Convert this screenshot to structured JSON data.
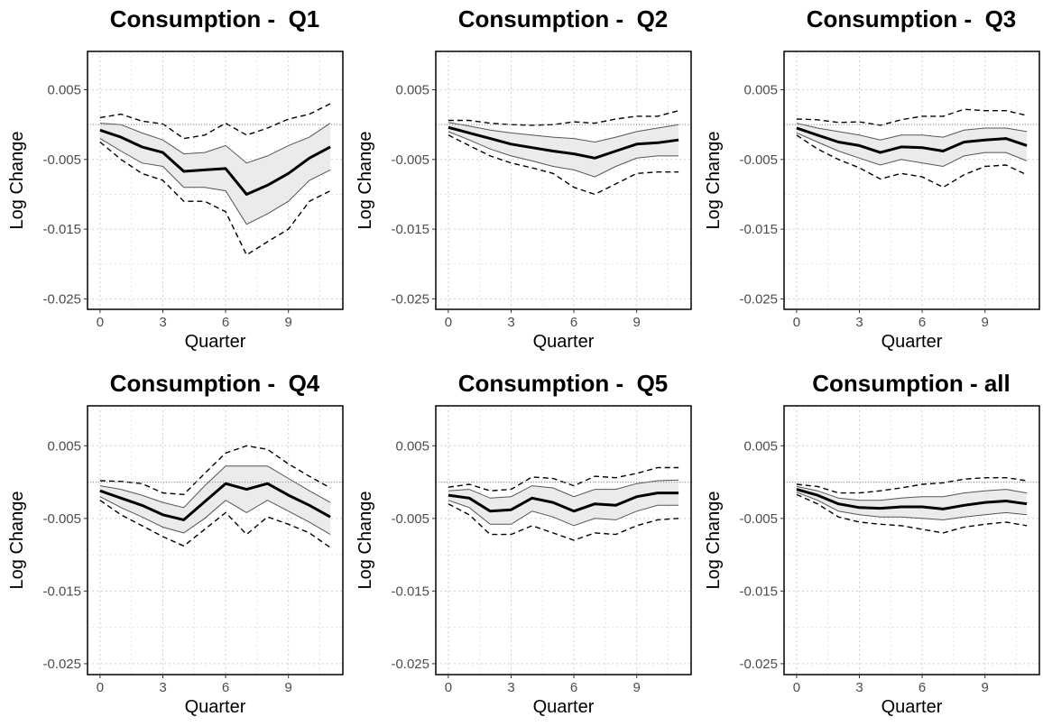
{
  "chart_data": [
    {
      "type": "line",
      "title": "Consumption -  Q1",
      "xlabel": "Quarter",
      "ylabel": "Log Change",
      "x": [
        0,
        1,
        2,
        3,
        4,
        5,
        6,
        7,
        8,
        9,
        10,
        11
      ],
      "xticks": [
        0,
        3,
        6,
        9
      ],
      "xtick_labels": [
        "0",
        "3",
        "6",
        "9"
      ],
      "yticks": [
        0.005,
        -0.005,
        -0.015,
        -0.025
      ],
      "ytick_labels": [
        "0.005",
        "-0.005",
        "-0.015",
        "-0.025"
      ],
      "xlim": [
        -0.6,
        11.6
      ],
      "ylim": [
        -0.0265,
        0.0105
      ],
      "grid": true,
      "reference_line": 0,
      "series": [
        {
          "role": "estimate",
          "values": [
            -0.0008,
            -0.0018,
            -0.0032,
            -0.004,
            -0.0067,
            -0.0065,
            -0.0063,
            -0.01,
            -0.0087,
            -0.007,
            -0.0048,
            -0.0032
          ]
        },
        {
          "role": "band_upper",
          "values": [
            0.0002,
            0.0,
            -0.0012,
            -0.0022,
            -0.0042,
            -0.004,
            -0.003,
            -0.0055,
            -0.0045,
            -0.003,
            -0.0018,
            0.0002
          ]
        },
        {
          "role": "band_lower",
          "values": [
            -0.002,
            -0.0038,
            -0.0055,
            -0.006,
            -0.009,
            -0.009,
            -0.0095,
            -0.0143,
            -0.0128,
            -0.011,
            -0.008,
            -0.0065
          ]
        },
        {
          "role": "ci_upper",
          "values": [
            0.001,
            0.0015,
            0.0005,
            0.0001,
            -0.002,
            -0.0015,
            0.0002,
            -0.0015,
            -0.0005,
            0.0008,
            0.0015,
            0.003
          ]
        },
        {
          "role": "ci_lower",
          "values": [
            -0.0025,
            -0.005,
            -0.007,
            -0.008,
            -0.011,
            -0.011,
            -0.0125,
            -0.0187,
            -0.0168,
            -0.015,
            -0.011,
            -0.0095
          ]
        }
      ]
    },
    {
      "type": "line",
      "title": "Consumption -  Q2",
      "xlabel": "Quarter",
      "ylabel": "Log Change",
      "x": [
        0,
        1,
        2,
        3,
        4,
        5,
        6,
        7,
        8,
        9,
        10,
        11
      ],
      "xticks": [
        0,
        3,
        6,
        9
      ],
      "xtick_labels": [
        "0",
        "3",
        "6",
        "9"
      ],
      "yticks": [
        0.005,
        -0.005,
        -0.015,
        -0.025
      ],
      "ytick_labels": [
        "0.005",
        "-0.005",
        "-0.015",
        "-0.025"
      ],
      "xlim": [
        -0.6,
        11.6
      ],
      "ylim": [
        -0.0265,
        0.0105
      ],
      "grid": true,
      "reference_line": 0,
      "series": [
        {
          "role": "estimate",
          "values": [
            -0.0004,
            -0.0012,
            -0.002,
            -0.0028,
            -0.0033,
            -0.0038,
            -0.0042,
            -0.0048,
            -0.0038,
            -0.0028,
            -0.0026,
            -0.0022
          ]
        },
        {
          "role": "band_upper",
          "values": [
            0.0003,
            -0.0002,
            -0.0008,
            -0.0012,
            -0.0015,
            -0.0018,
            -0.002,
            -0.0025,
            -0.0018,
            -0.001,
            -0.0005,
            0.0
          ]
        },
        {
          "role": "band_lower",
          "values": [
            -0.001,
            -0.0022,
            -0.0035,
            -0.0045,
            -0.0052,
            -0.006,
            -0.0065,
            -0.0075,
            -0.006,
            -0.0048,
            -0.0045,
            -0.0045
          ]
        },
        {
          "role": "ci_upper",
          "values": [
            0.0006,
            0.0006,
            0.0002,
            0.0,
            -0.0001,
            0.0,
            0.0004,
            0.0002,
            0.0008,
            0.0012,
            0.0012,
            0.002
          ]
        },
        {
          "role": "ci_lower",
          "values": [
            -0.0015,
            -0.003,
            -0.0045,
            -0.0055,
            -0.0062,
            -0.007,
            -0.009,
            -0.01,
            -0.0085,
            -0.007,
            -0.0068,
            -0.0068
          ]
        }
      ]
    },
    {
      "type": "line",
      "title": "Consumption -  Q3",
      "xlabel": "Quarter",
      "ylabel": "Log Change",
      "x": [
        0,
        1,
        2,
        3,
        4,
        5,
        6,
        7,
        8,
        9,
        10,
        11
      ],
      "xticks": [
        0,
        3,
        6,
        9
      ],
      "xtick_labels": [
        "0",
        "3",
        "6",
        "9"
      ],
      "yticks": [
        0.005,
        -0.005,
        -0.015,
        -0.025
      ],
      "ytick_labels": [
        "0.005",
        "-0.005",
        "-0.015",
        "-0.025"
      ],
      "xlim": [
        -0.6,
        11.6
      ],
      "ylim": [
        -0.0265,
        0.0105
      ],
      "grid": true,
      "reference_line": 0,
      "series": [
        {
          "role": "estimate",
          "values": [
            -0.0005,
            -0.0015,
            -0.0025,
            -0.003,
            -0.004,
            -0.0032,
            -0.0033,
            -0.0038,
            -0.0025,
            -0.0022,
            -0.002,
            -0.003
          ]
        },
        {
          "role": "band_upper",
          "values": [
            0.0002,
            -0.0005,
            -0.001,
            -0.0015,
            -0.0022,
            -0.0015,
            -0.0015,
            -0.0018,
            -0.0008,
            -0.0005,
            -0.0005,
            -0.001
          ]
        },
        {
          "role": "band_lower",
          "values": [
            -0.0012,
            -0.0025,
            -0.0038,
            -0.0048,
            -0.0058,
            -0.005,
            -0.0055,
            -0.006,
            -0.0045,
            -0.004,
            -0.004,
            -0.0052
          ]
        },
        {
          "role": "ci_upper",
          "values": [
            0.0008,
            0.0007,
            0.0003,
            0.0004,
            -0.0001,
            0.0007,
            0.0012,
            0.0012,
            0.0022,
            0.002,
            0.002,
            0.0013
          ]
        },
        {
          "role": "ci_lower",
          "values": [
            -0.0015,
            -0.0035,
            -0.005,
            -0.0062,
            -0.0078,
            -0.007,
            -0.0075,
            -0.009,
            -0.0072,
            -0.006,
            -0.0058,
            -0.0072
          ]
        }
      ]
    },
    {
      "type": "line",
      "title": "Consumption -  Q4",
      "xlabel": "Quarter",
      "ylabel": "Log Change",
      "x": [
        0,
        1,
        2,
        3,
        4,
        5,
        6,
        7,
        8,
        9,
        10,
        11
      ],
      "xticks": [
        0,
        3,
        6,
        9
      ],
      "xtick_labels": [
        "0",
        "3",
        "6",
        "9"
      ],
      "yticks": [
        0.005,
        -0.005,
        -0.015,
        -0.025
      ],
      "ytick_labels": [
        "0.005",
        "-0.005",
        "-0.015",
        "-0.025"
      ],
      "xlim": [
        -0.6,
        11.6
      ],
      "ylim": [
        -0.0265,
        0.0105
      ],
      "grid": true,
      "reference_line": 0,
      "series": [
        {
          "role": "estimate",
          "values": [
            -0.0012,
            -0.0022,
            -0.0032,
            -0.0045,
            -0.0052,
            -0.0027,
            -0.0002,
            -0.001,
            -0.0002,
            -0.0018,
            -0.0032,
            -0.0048
          ]
        },
        {
          "role": "band_upper",
          "values": [
            -0.0005,
            -0.001,
            -0.0018,
            -0.0028,
            -0.0035,
            -0.0005,
            0.0022,
            0.0022,
            0.0022,
            0.0005,
            -0.0012,
            -0.0028
          ]
        },
        {
          "role": "band_lower",
          "values": [
            -0.002,
            -0.0035,
            -0.0048,
            -0.0062,
            -0.007,
            -0.005,
            -0.0025,
            -0.0042,
            -0.0025,
            -0.004,
            -0.0055,
            -0.0072
          ]
        },
        {
          "role": "ci_upper",
          "values": [
            0.0002,
            0.0001,
            -0.0002,
            -0.0015,
            -0.0017,
            0.0012,
            0.004,
            0.005,
            0.0045,
            0.0025,
            0.0008,
            -0.0008
          ]
        },
        {
          "role": "ci_lower",
          "values": [
            -0.0025,
            -0.0045,
            -0.006,
            -0.0075,
            -0.0088,
            -0.0065,
            -0.0042,
            -0.0072,
            -0.0048,
            -0.0058,
            -0.007,
            -0.009
          ]
        }
      ]
    },
    {
      "type": "line",
      "title": "Consumption -  Q5",
      "xlabel": "Quarter",
      "ylabel": "Log Change",
      "x": [
        0,
        1,
        2,
        3,
        4,
        5,
        6,
        7,
        8,
        9,
        10,
        11
      ],
      "xticks": [
        0,
        3,
        6,
        9
      ],
      "xtick_labels": [
        "0",
        "3",
        "6",
        "9"
      ],
      "yticks": [
        0.005,
        -0.005,
        -0.015,
        -0.025
      ],
      "ytick_labels": [
        "0.005",
        "-0.005",
        "-0.015",
        "-0.025"
      ],
      "xlim": [
        -0.6,
        11.6
      ],
      "ylim": [
        -0.0265,
        0.0105
      ],
      "grid": true,
      "reference_line": 0,
      "series": [
        {
          "role": "estimate",
          "values": [
            -0.0018,
            -0.0022,
            -0.004,
            -0.0038,
            -0.0022,
            -0.0028,
            -0.004,
            -0.003,
            -0.0032,
            -0.002,
            -0.0015,
            -0.0015
          ]
        },
        {
          "role": "band_upper",
          "values": [
            -0.0012,
            -0.001,
            -0.0022,
            -0.002,
            -0.0005,
            -0.0008,
            -0.002,
            -0.001,
            -0.001,
            -0.0002,
            0.0002,
            0.0003
          ]
        },
        {
          "role": "band_lower",
          "values": [
            -0.0025,
            -0.0035,
            -0.0058,
            -0.0058,
            -0.004,
            -0.0048,
            -0.006,
            -0.005,
            -0.0052,
            -0.004,
            -0.0032,
            -0.0032
          ]
        },
        {
          "role": "ci_upper",
          "values": [
            -0.0007,
            -0.0003,
            -0.0012,
            -0.001,
            0.0007,
            0.0005,
            -0.0005,
            0.0008,
            0.0006,
            0.0012,
            0.002,
            0.002
          ]
        },
        {
          "role": "ci_lower",
          "values": [
            -0.003,
            -0.0045,
            -0.0072,
            -0.0072,
            -0.006,
            -0.007,
            -0.008,
            -0.007,
            -0.0072,
            -0.006,
            -0.0052,
            -0.005
          ]
        }
      ]
    },
    {
      "type": "line",
      "title": "Consumption - all",
      "xlabel": "Quarter",
      "ylabel": "Log Change",
      "x": [
        0,
        1,
        2,
        3,
        4,
        5,
        6,
        7,
        8,
        9,
        10,
        11
      ],
      "xticks": [
        0,
        3,
        6,
        9
      ],
      "xtick_labels": [
        "0",
        "3",
        "6",
        "9"
      ],
      "yticks": [
        0.005,
        -0.005,
        -0.015,
        -0.025
      ],
      "ytick_labels": [
        "0.005",
        "-0.005",
        "-0.015",
        "-0.025"
      ],
      "xlim": [
        -0.6,
        11.6
      ],
      "ylim": [
        -0.0265,
        0.0105
      ],
      "grid": true,
      "reference_line": 0,
      "series": [
        {
          "role": "estimate",
          "values": [
            -0.001,
            -0.0018,
            -0.003,
            -0.0035,
            -0.0036,
            -0.0034,
            -0.0034,
            -0.0037,
            -0.0032,
            -0.0028,
            -0.0026,
            -0.003
          ]
        },
        {
          "role": "band_upper",
          "values": [
            -0.0006,
            -0.0012,
            -0.0022,
            -0.0025,
            -0.0025,
            -0.0022,
            -0.002,
            -0.002,
            -0.0015,
            -0.0012,
            -0.001,
            -0.0015
          ]
        },
        {
          "role": "band_lower",
          "values": [
            -0.0014,
            -0.0025,
            -0.004,
            -0.0045,
            -0.0048,
            -0.0048,
            -0.005,
            -0.0052,
            -0.0048,
            -0.0045,
            -0.0042,
            -0.0045
          ]
        },
        {
          "role": "ci_upper",
          "values": [
            -0.0003,
            -0.0006,
            -0.0015,
            -0.0015,
            -0.0012,
            -0.0008,
            -0.0003,
            -0.0001,
            0.0004,
            0.0006,
            0.0006,
            0.0002
          ]
        },
        {
          "role": "ci_lower",
          "values": [
            -0.0017,
            -0.003,
            -0.0048,
            -0.0055,
            -0.0058,
            -0.006,
            -0.0065,
            -0.007,
            -0.0062,
            -0.0058,
            -0.0055,
            -0.006
          ]
        }
      ]
    }
  ]
}
